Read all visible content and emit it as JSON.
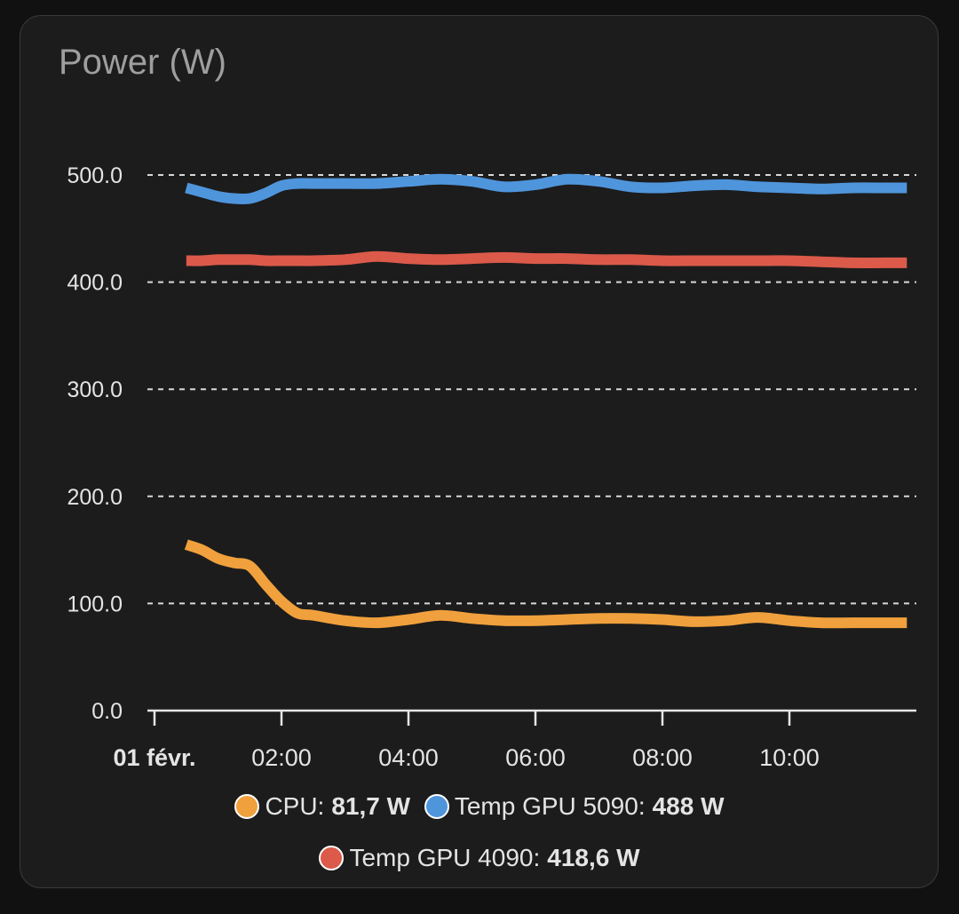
{
  "card": {
    "title": "Power (W)"
  },
  "chart_data": {
    "type": "line",
    "title": "Power (W)",
    "xlabel": "",
    "ylabel": "",
    "ylim": [
      0,
      500
    ],
    "xlim": [
      0.5,
      11.85
    ],
    "y_ticks": [
      0,
      100,
      200,
      300,
      400,
      500
    ],
    "y_tick_labels": [
      "0.0",
      "100.0",
      "200.0",
      "300.0",
      "400.0",
      "500.0"
    ],
    "x_ticks": [
      0,
      2,
      4,
      6,
      8,
      10
    ],
    "x_tick_labels": [
      "01 févr.",
      "02:00",
      "04:00",
      "06:00",
      "08:00",
      "10:00"
    ],
    "grid": true,
    "x": [
      0.5,
      0.75,
      1.0,
      1.25,
      1.5,
      1.75,
      2.0,
      2.25,
      2.5,
      3.0,
      3.5,
      4.0,
      4.5,
      5.0,
      5.5,
      6.0,
      6.5,
      7.0,
      7.5,
      8.0,
      8.5,
      9.0,
      9.5,
      10.0,
      10.5,
      11.0,
      11.5,
      11.85
    ],
    "series": [
      {
        "name": "CPU",
        "color": "#f0a03c",
        "values": [
          155,
          150,
          142,
          138,
          135,
          118,
          102,
          91,
          89,
          84,
          82,
          85,
          89,
          86,
          84,
          84,
          85,
          86,
          86,
          85,
          83,
          84,
          87,
          84,
          82,
          82,
          82,
          82
        ]
      },
      {
        "name": "Temp GPU 5090",
        "color": "#4f95dc",
        "values": [
          488,
          484,
          480,
          478,
          478,
          483,
          490,
          492,
          492,
          492,
          492,
          494,
          496,
          494,
          489,
          491,
          496,
          494,
          489,
          488,
          490,
          491,
          489,
          488,
          487,
          488,
          488,
          488
        ]
      },
      {
        "name": "Temp GPU 4090",
        "color": "#db5a4a",
        "values": [
          420,
          420,
          421,
          421,
          421,
          420,
          420,
          420,
          420,
          421,
          424,
          422,
          421,
          422,
          423,
          422,
          422,
          421,
          421,
          420,
          420,
          420,
          420,
          420,
          419,
          418,
          418,
          418
        ]
      }
    ]
  },
  "legend": {
    "items": [
      {
        "name": "CPU",
        "label": "CPU:",
        "value": "81,7 W",
        "color": "#f0a03c"
      },
      {
        "name": "Temp GPU 5090",
        "label": "Temp GPU 5090:",
        "value": "488 W",
        "color": "#4f95dc"
      },
      {
        "name": "Temp GPU 4090",
        "label": "Temp GPU 4090:",
        "value": "418,6 W",
        "color": "#db5a4a"
      }
    ]
  }
}
